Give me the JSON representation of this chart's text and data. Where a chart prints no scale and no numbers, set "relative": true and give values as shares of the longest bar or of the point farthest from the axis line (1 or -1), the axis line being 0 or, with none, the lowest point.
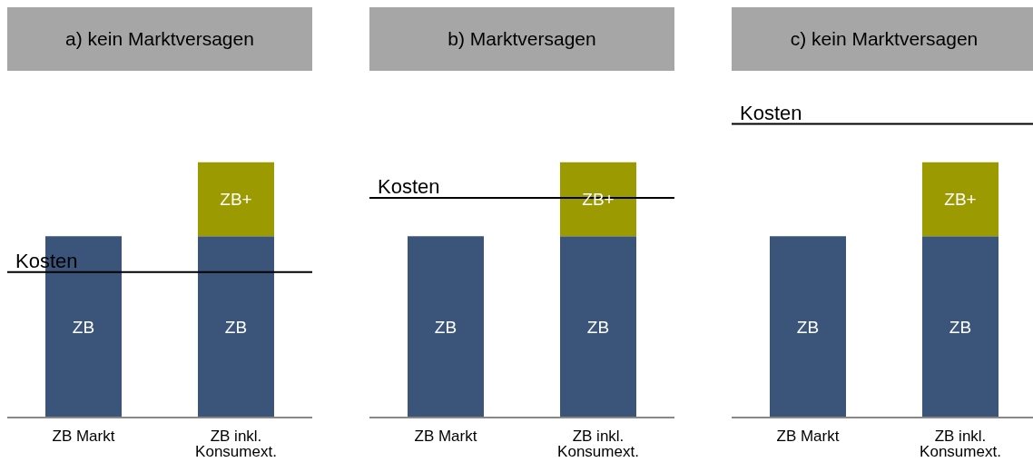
{
  "chart_data": [
    {
      "type": "bar",
      "title": "a) kein Marktversagen",
      "categories": [
        "ZB Markt",
        "ZB inkl. Konsumext."
      ],
      "stacked": true,
      "relative": true,
      "series": [
        {
          "name": "ZB",
          "color": "#3b5479",
          "values": [
            0.71,
            0.71
          ]
        },
        {
          "name": "ZB+",
          "color": "#9b9a00",
          "values": [
            null,
            0.29
          ]
        }
      ],
      "ref_lines": [
        {
          "axis": "y",
          "value": 0.57,
          "label": "Kosten",
          "color": "#000000"
        }
      ]
    },
    {
      "type": "bar",
      "title": "b) Marktversagen",
      "categories": [
        "ZB Markt",
        "ZB inkl. Konsumext."
      ],
      "stacked": true,
      "relative": true,
      "series": [
        {
          "name": "ZB",
          "color": "#3b5479",
          "values": [
            0.71,
            0.71
          ]
        },
        {
          "name": "ZB+",
          "color": "#9b9a00",
          "values": [
            null,
            0.29
          ]
        }
      ],
      "ref_lines": [
        {
          "axis": "y",
          "value": 0.86,
          "label": "Kosten",
          "color": "#000000"
        }
      ]
    },
    {
      "type": "bar",
      "title": "c) kein Marktversagen",
      "categories": [
        "ZB Markt",
        "ZB inkl. Konsumext."
      ],
      "stacked": true,
      "relative": true,
      "series": [
        {
          "name": "ZB",
          "color": "#3b5479",
          "values": [
            0.71,
            0.71
          ]
        },
        {
          "name": "ZB+",
          "color": "#9b9a00",
          "values": [
            null,
            0.29
          ]
        }
      ],
      "ref_lines": [
        {
          "axis": "y",
          "value": 1.15,
          "label": "Kosten",
          "color": "#000000"
        }
      ]
    }
  ]
}
